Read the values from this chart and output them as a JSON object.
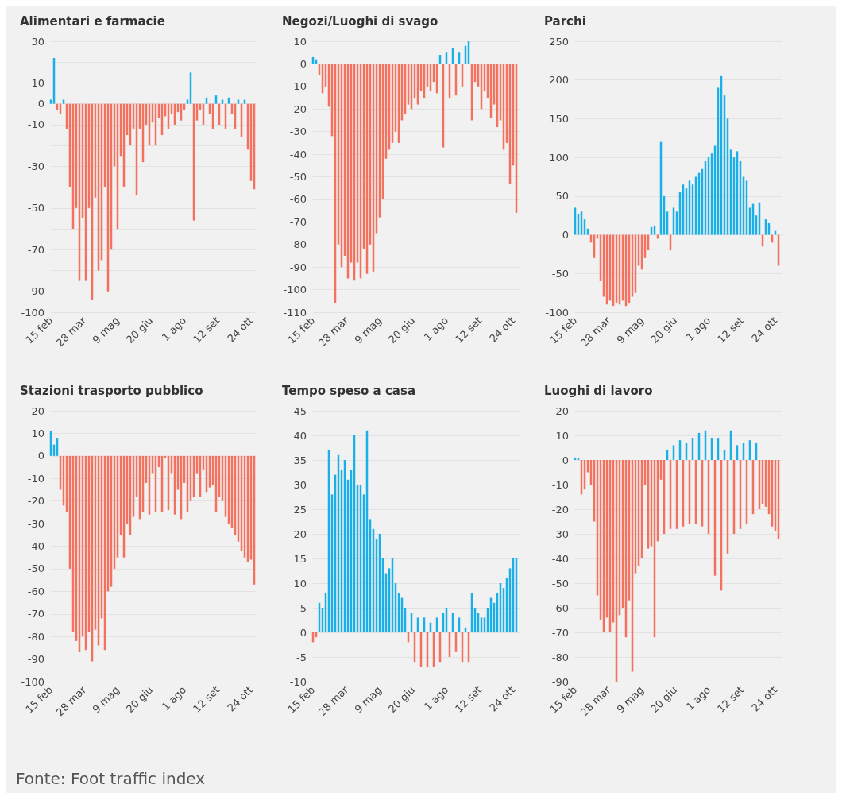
{
  "chart_data": [
    {
      "type": "bar",
      "title": "Alimentari e farmacie",
      "grid": "y",
      "ylim": [
        -100,
        30
      ],
      "yticks": [
        {
          "value": -100,
          "label": "-100"
        },
        {
          "value": -90,
          "label": "-90"
        },
        {
          "value": -80,
          "label": null
        },
        {
          "value": -70,
          "label": "-70"
        },
        {
          "value": -60,
          "label": null
        },
        {
          "value": -50,
          "label": "-50"
        },
        {
          "value": -40,
          "label": null
        },
        {
          "value": -30,
          "label": "-30"
        },
        {
          "value": -20,
          "label": null
        },
        {
          "value": -10,
          "label": "-10"
        },
        {
          "value": 0,
          "label": "0"
        },
        {
          "value": 10,
          "label": "10"
        },
        {
          "value": 20,
          "label": null
        },
        {
          "value": 30,
          "label": "30"
        }
      ],
      "xlim": [
        "--02-15",
        "--11-01"
      ],
      "xticks": [
        {
          "value": "--02-15",
          "label": "15 feb"
        },
        {
          "value": "--03-28",
          "label": "28 mar"
        },
        {
          "value": "--05-09",
          "label": "9 mag"
        },
        {
          "value": "--06-20",
          "label": "20 giu"
        },
        {
          "value": "--08-01",
          "label": "1 ago"
        },
        {
          "value": "--09-12",
          "label": "12 set"
        },
        {
          "value": "--10-24",
          "label": "24 ott"
        }
      ],
      "x": [
        "--02-15",
        "--02-19",
        "--02-23",
        "--02-27",
        "--03-02",
        "--03-06",
        "--03-10",
        "--03-14",
        "--03-18",
        "--03-22",
        "--03-26",
        "--03-30",
        "--04-03",
        "--04-07",
        "--04-11",
        "--04-15",
        "--04-19",
        "--04-23",
        "--04-27",
        "--05-01",
        "--05-05",
        "--05-09",
        "--05-13",
        "--05-17",
        "--05-21",
        "--05-25",
        "--05-29",
        "--06-02",
        "--06-06",
        "--06-10",
        "--06-14",
        "--06-18",
        "--06-22",
        "--06-26",
        "--06-30",
        "--07-04",
        "--07-08",
        "--07-12",
        "--07-16",
        "--07-20",
        "--07-24",
        "--07-28",
        "--08-01",
        "--08-05",
        "--08-09",
        "--08-13",
        "--08-17",
        "--08-21",
        "--08-25",
        "--08-29",
        "--09-02",
        "--09-06",
        "--09-10",
        "--09-14",
        "--09-18",
        "--09-22",
        "--09-26",
        "--09-30",
        "--10-04",
        "--10-08",
        "--10-12",
        "--10-16",
        "--10-20",
        "--10-24",
        "--10-28"
      ],
      "series": [
        {
          "color": "#1aafe6",
          "values": [
            2,
            22,
            null,
            null,
            2,
            null,
            null,
            null,
            null,
            null,
            null,
            null,
            null,
            null,
            null,
            null,
            null,
            null,
            null,
            null,
            null,
            null,
            null,
            null,
            null,
            null,
            null,
            null,
            null,
            null,
            null,
            null,
            null,
            null,
            null,
            null,
            null,
            null,
            null,
            null,
            null,
            null,
            null,
            2,
            15,
            null,
            null,
            null,
            null,
            3,
            null,
            null,
            4,
            null,
            2,
            null,
            3,
            null,
            null,
            2,
            null,
            2,
            null,
            null,
            null
          ]
        },
        {
          "color": "#f4715f",
          "values": [
            null,
            null,
            -3,
            -5,
            null,
            -12,
            -40,
            -60,
            -50,
            -85,
            -55,
            -85,
            -50,
            -94,
            -45,
            -80,
            -75,
            -40,
            -90,
            -70,
            -30,
            -60,
            -25,
            -40,
            -15,
            -20,
            -12,
            -44,
            -12,
            -28,
            -10,
            -20,
            -9,
            -20,
            -7,
            -15,
            -6,
            -12,
            -5,
            -10,
            -4,
            -8,
            -3,
            null,
            null,
            -56,
            -8,
            -3,
            -10,
            null,
            -5,
            -12,
            null,
            -10,
            null,
            -12,
            null,
            -5,
            -12,
            null,
            -16,
            null,
            -22,
            -37,
            -41
          ]
        }
      ]
    },
    {
      "type": "bar",
      "title": "Negozi/Luoghi di svago",
      "grid": "y",
      "ylim": [
        -110,
        10
      ],
      "yticks": [
        -110,
        -100,
        -90,
        -80,
        -70,
        -60,
        -50,
        -40,
        -30,
        -20,
        -10,
        0,
        10
      ],
      "xlim": [
        "--02-15",
        "--11-01"
      ],
      "xticks": [
        {
          "value": "--02-15",
          "label": "15 feb"
        },
        {
          "value": "--03-28",
          "label": "28 mar"
        },
        {
          "value": "--05-09",
          "label": "9 mag"
        },
        {
          "value": "--06-20",
          "label": "20 giu"
        },
        {
          "value": "--08-01",
          "label": "1 ago"
        },
        {
          "value": "--09-12",
          "label": "12 set"
        },
        {
          "value": "--10-24",
          "label": "24 ott"
        }
      ],
      "x": [
        "--02-15",
        "--02-19",
        "--02-23",
        "--02-27",
        "--03-02",
        "--03-06",
        "--03-10",
        "--03-14",
        "--03-18",
        "--03-22",
        "--03-26",
        "--03-30",
        "--04-03",
        "--04-07",
        "--04-11",
        "--04-15",
        "--04-19",
        "--04-23",
        "--04-27",
        "--05-01",
        "--05-05",
        "--05-09",
        "--05-13",
        "--05-17",
        "--05-21",
        "--05-25",
        "--05-29",
        "--06-02",
        "--06-06",
        "--06-10",
        "--06-14",
        "--06-18",
        "--06-22",
        "--06-26",
        "--06-30",
        "--07-04",
        "--07-08",
        "--07-12",
        "--07-16",
        "--07-20",
        "--07-24",
        "--07-28",
        "--08-01",
        "--08-05",
        "--08-09",
        "--08-13",
        "--08-17",
        "--08-21",
        "--08-25",
        "--08-29",
        "--09-02",
        "--09-06",
        "--09-10",
        "--09-14",
        "--09-18",
        "--09-22",
        "--09-26",
        "--09-30",
        "--10-04",
        "--10-08",
        "--10-12",
        "--10-16",
        "--10-20",
        "--10-24",
        "--10-28"
      ],
      "series": [
        {
          "color": "#1aafe6",
          "values": [
            3,
            2,
            null,
            null,
            null,
            null,
            null,
            null,
            null,
            null,
            null,
            null,
            null,
            null,
            null,
            null,
            null,
            null,
            null,
            null,
            null,
            null,
            null,
            null,
            null,
            null,
            null,
            null,
            null,
            null,
            null,
            null,
            null,
            null,
            null,
            null,
            null,
            null,
            null,
            null,
            4,
            null,
            5,
            null,
            7,
            null,
            5,
            null,
            8,
            10,
            null,
            null,
            null,
            null,
            null,
            null,
            null,
            null,
            null,
            null,
            null,
            null,
            null,
            null,
            null
          ]
        },
        {
          "color": "#f4715f",
          "values": [
            null,
            null,
            -5,
            -13,
            -10,
            -19,
            -32,
            -106,
            -80,
            -90,
            -85,
            -95,
            -88,
            -96,
            -88,
            -95,
            -82,
            -93,
            -80,
            -92,
            -75,
            -68,
            -60,
            -42,
            -38,
            -35,
            -30,
            -35,
            -25,
            -22,
            -18,
            -20,
            -15,
            -18,
            -12,
            -15,
            -10,
            -12,
            -8,
            -13,
            null,
            -37,
            null,
            -15,
            null,
            -14,
            null,
            -10,
            null,
            null,
            -25,
            -8,
            -10,
            -20,
            -12,
            -15,
            -24,
            -18,
            -28,
            -25,
            -38,
            -35,
            -53,
            -45,
            -66
          ]
        }
      ]
    },
    {
      "type": "bar",
      "title": "Parchi",
      "grid": "y",
      "ylim": [
        -100,
        250
      ],
      "yticks": [
        -100,
        -50,
        0,
        50,
        100,
        150,
        200,
        250
      ],
      "xlim": [
        "--02-15",
        "--11-01"
      ],
      "xticks": [
        {
          "value": "--02-15",
          "label": "15 feb"
        },
        {
          "value": "--03-28",
          "label": "28 mar"
        },
        {
          "value": "--05-09",
          "label": "9 mag"
        },
        {
          "value": "--06-20",
          "label": "20 giu"
        },
        {
          "value": "--08-01",
          "label": "1 ago"
        },
        {
          "value": "--09-12",
          "label": "12 set"
        },
        {
          "value": "--10-24",
          "label": "24 ott"
        }
      ],
      "x": [
        "--02-15",
        "--02-19",
        "--02-23",
        "--02-27",
        "--03-02",
        "--03-06",
        "--03-10",
        "--03-14",
        "--03-18",
        "--03-22",
        "--03-26",
        "--03-30",
        "--04-03",
        "--04-07",
        "--04-11",
        "--04-15",
        "--04-19",
        "--04-23",
        "--04-27",
        "--05-01",
        "--05-05",
        "--05-09",
        "--05-13",
        "--05-17",
        "--05-21",
        "--05-25",
        "--05-29",
        "--06-02",
        "--06-06",
        "--06-10",
        "--06-14",
        "--06-18",
        "--06-22",
        "--06-26",
        "--06-30",
        "--07-04",
        "--07-08",
        "--07-12",
        "--07-16",
        "--07-20",
        "--07-24",
        "--07-28",
        "--08-01",
        "--08-05",
        "--08-09",
        "--08-13",
        "--08-17",
        "--08-21",
        "--08-25",
        "--08-29",
        "--09-02",
        "--09-06",
        "--09-10",
        "--09-14",
        "--09-18",
        "--09-22",
        "--09-26",
        "--09-30",
        "--10-04",
        "--10-08",
        "--10-12",
        "--10-16",
        "--10-20",
        "--10-24",
        "--10-28"
      ],
      "series": [
        {
          "color": "#1aafe6",
          "values": [
            35,
            27,
            30,
            20,
            8,
            null,
            null,
            null,
            null,
            null,
            null,
            null,
            null,
            null,
            null,
            null,
            null,
            null,
            null,
            null,
            null,
            null,
            null,
            null,
            10,
            12,
            null,
            120,
            50,
            30,
            null,
            35,
            30,
            55,
            65,
            60,
            70,
            65,
            75,
            80,
            85,
            95,
            100,
            105,
            115,
            190,
            205,
            180,
            150,
            110,
            100,
            108,
            95,
            75,
            70,
            35,
            40,
            25,
            42,
            null,
            20,
            15,
            null,
            5,
            null
          ]
        },
        {
          "color": "#f4715f",
          "values": [
            null,
            null,
            null,
            null,
            null,
            -10,
            -30,
            -5,
            -60,
            -80,
            -90,
            -85,
            -92,
            -88,
            -90,
            -85,
            -92,
            -88,
            -80,
            -75,
            -40,
            -45,
            -30,
            -20,
            null,
            null,
            -5,
            null,
            null,
            null,
            -20,
            null,
            null,
            null,
            null,
            null,
            null,
            null,
            null,
            null,
            null,
            null,
            null,
            null,
            null,
            null,
            null,
            null,
            null,
            null,
            null,
            null,
            null,
            null,
            null,
            null,
            null,
            null,
            null,
            -15,
            null,
            null,
            -10,
            null,
            -40
          ]
        }
      ]
    },
    {
      "type": "bar",
      "title": "Stazioni trasporto pubblico",
      "grid": "y",
      "ylim": [
        -100,
        20
      ],
      "yticks": [
        -100,
        -90,
        -80,
        -70,
        -60,
        -50,
        -40,
        -30,
        -20,
        -10,
        0,
        10,
        20
      ],
      "xlim": [
        "--02-15",
        "--11-01"
      ],
      "xticks": [
        {
          "value": "--02-15",
          "label": "15 feb"
        },
        {
          "value": "--03-28",
          "label": "28 mar"
        },
        {
          "value": "--05-09",
          "label": "9 mag"
        },
        {
          "value": "--06-20",
          "label": "20 giu"
        },
        {
          "value": "--08-01",
          "label": "1 ago"
        },
        {
          "value": "--09-12",
          "label": "12 set"
        },
        {
          "value": "--10-24",
          "label": "24 ott"
        }
      ],
      "x": [
        "--02-15",
        "--02-19",
        "--02-23",
        "--02-27",
        "--03-02",
        "--03-06",
        "--03-10",
        "--03-14",
        "--03-18",
        "--03-22",
        "--03-26",
        "--03-30",
        "--04-03",
        "--04-07",
        "--04-11",
        "--04-15",
        "--04-19",
        "--04-23",
        "--04-27",
        "--05-01",
        "--05-05",
        "--05-09",
        "--05-13",
        "--05-17",
        "--05-21",
        "--05-25",
        "--05-29",
        "--06-02",
        "--06-06",
        "--06-10",
        "--06-14",
        "--06-18",
        "--06-22",
        "--06-26",
        "--06-30",
        "--07-04",
        "--07-08",
        "--07-12",
        "--07-16",
        "--07-20",
        "--07-24",
        "--07-28",
        "--08-01",
        "--08-05",
        "--08-09",
        "--08-13",
        "--08-17",
        "--08-21",
        "--08-25",
        "--08-29",
        "--09-02",
        "--09-06",
        "--09-10",
        "--09-14",
        "--09-18",
        "--09-22",
        "--09-26",
        "--09-30",
        "--10-04",
        "--10-08",
        "--10-12",
        "--10-16",
        "--10-20",
        "--10-24",
        "--10-28"
      ],
      "series": [
        {
          "color": "#1aafe6",
          "values": [
            11,
            5,
            8,
            null,
            null,
            null,
            null,
            null,
            null,
            null,
            null,
            null,
            null,
            null,
            null,
            null,
            null,
            null,
            null,
            null,
            null,
            null,
            null,
            null,
            null,
            null,
            null,
            null,
            null,
            null,
            null,
            null,
            null,
            null,
            null,
            null,
            null,
            null,
            null,
            null,
            null,
            null,
            null,
            null,
            null,
            null,
            null,
            null,
            null,
            null,
            null,
            null,
            null,
            null,
            null,
            null,
            null,
            null,
            null,
            null,
            null,
            null,
            null,
            null,
            null
          ]
        },
        {
          "color": "#f4715f",
          "values": [
            null,
            null,
            null,
            -15,
            -22,
            -25,
            -50,
            -78,
            -82,
            -87,
            -80,
            -86,
            -78,
            -91,
            -77,
            -84,
            -72,
            -86,
            -60,
            -58,
            -50,
            -45,
            -35,
            -45,
            -30,
            -35,
            -27,
            -18,
            -28,
            -25,
            -12,
            -26,
            -8,
            -25,
            -5,
            -25,
            -1,
            -24,
            -8,
            -26,
            -15,
            -28,
            -12,
            -25,
            -20,
            -18,
            -8,
            -18,
            -6,
            -16,
            -14,
            -13,
            -25,
            -18,
            -20,
            -27,
            -30,
            -32,
            -35,
            -38,
            -42,
            -45,
            -47,
            -46,
            -57
          ]
        }
      ]
    },
    {
      "type": "bar",
      "title": "Tempo speso a casa",
      "grid": "y",
      "ylim": [
        -10,
        45
      ],
      "yticks": [
        -10,
        -5,
        0,
        5,
        10,
        15,
        20,
        25,
        30,
        35,
        40,
        45
      ],
      "xlim": [
        "--02-15",
        "--11-01"
      ],
      "xticks": [
        {
          "value": "--02-15",
          "label": "15 feb"
        },
        {
          "value": "--03-28",
          "label": "28 mar"
        },
        {
          "value": "--05-09",
          "label": "9 mag"
        },
        {
          "value": "--06-20",
          "label": "20 giu"
        },
        {
          "value": "--08-01",
          "label": "1 ago"
        },
        {
          "value": "--09-12",
          "label": "12 set"
        },
        {
          "value": "--10-24",
          "label": "24 ott"
        }
      ],
      "x": [
        "--02-15",
        "--02-19",
        "--02-23",
        "--02-27",
        "--03-02",
        "--03-06",
        "--03-10",
        "--03-14",
        "--03-18",
        "--03-22",
        "--03-26",
        "--03-30",
        "--04-03",
        "--04-07",
        "--04-11",
        "--04-15",
        "--04-19",
        "--04-23",
        "--04-27",
        "--05-01",
        "--05-05",
        "--05-09",
        "--05-13",
        "--05-17",
        "--05-21",
        "--05-25",
        "--05-29",
        "--06-02",
        "--06-06",
        "--06-10",
        "--06-14",
        "--06-18",
        "--06-22",
        "--06-26",
        "--06-30",
        "--07-04",
        "--07-08",
        "--07-12",
        "--07-16",
        "--07-20",
        "--07-24",
        "--07-28",
        "--08-01",
        "--08-05",
        "--08-09",
        "--08-13",
        "--08-17",
        "--08-21",
        "--08-25",
        "--08-29",
        "--09-02",
        "--09-06",
        "--09-10",
        "--09-14",
        "--09-18",
        "--09-22",
        "--09-26",
        "--09-30",
        "--10-04",
        "--10-08",
        "--10-12",
        "--10-16",
        "--10-20",
        "--10-24",
        "--10-28"
      ],
      "series": [
        {
          "color": "#1aafe6",
          "values": [
            null,
            null,
            6,
            5,
            8,
            37,
            28,
            32,
            36,
            33,
            35,
            31,
            33,
            40,
            30,
            30,
            28,
            41,
            23,
            21,
            19,
            20,
            15,
            12,
            13,
            15,
            10,
            8,
            7,
            5,
            null,
            4,
            null,
            3,
            null,
            3,
            null,
            2,
            null,
            3,
            null,
            4,
            5,
            null,
            4,
            null,
            3,
            null,
            1,
            null,
            8,
            5,
            4,
            3,
            3,
            5,
            7,
            6,
            8,
            10,
            9,
            11,
            13,
            15,
            15
          ]
        },
        {
          "color": "#f4715f",
          "values": [
            -2,
            -1,
            null,
            null,
            null,
            null,
            null,
            null,
            null,
            null,
            null,
            null,
            null,
            null,
            null,
            null,
            null,
            null,
            null,
            null,
            null,
            null,
            null,
            null,
            null,
            null,
            null,
            null,
            null,
            null,
            -2,
            null,
            -6,
            null,
            -7,
            null,
            -7,
            null,
            -7,
            null,
            -6,
            null,
            null,
            -5,
            null,
            -4,
            null,
            -6,
            null,
            -6,
            null,
            null,
            null,
            null,
            null,
            null,
            null,
            null,
            null,
            null,
            null,
            null,
            null,
            null,
            null
          ]
        }
      ]
    },
    {
      "type": "bar",
      "title": "Luoghi di lavoro",
      "grid": "y",
      "ylim": [
        -90,
        20
      ],
      "yticks": [
        -90,
        -80,
        -70,
        -60,
        -50,
        -40,
        -30,
        -20,
        -10,
        0,
        10,
        20
      ],
      "xlim": [
        "--02-15",
        "--11-01"
      ],
      "xticks": [
        {
          "value": "--02-15",
          "label": "15 feb"
        },
        {
          "value": "--03-28",
          "label": "28 mar"
        },
        {
          "value": "--05-09",
          "label": "9 mag"
        },
        {
          "value": "--06-20",
          "label": "20 giu"
        },
        {
          "value": "--08-01",
          "label": "1 ago"
        },
        {
          "value": "--09-12",
          "label": "12 set"
        },
        {
          "value": "--10-24",
          "label": "24 ott"
        }
      ],
      "x": [
        "--02-15",
        "--02-19",
        "--02-23",
        "--02-27",
        "--03-02",
        "--03-06",
        "--03-10",
        "--03-14",
        "--03-18",
        "--03-22",
        "--03-26",
        "--03-30",
        "--04-03",
        "--04-07",
        "--04-11",
        "--04-15",
        "--04-19",
        "--04-23",
        "--04-27",
        "--05-01",
        "--05-05",
        "--05-09",
        "--05-13",
        "--05-17",
        "--05-21",
        "--05-25",
        "--05-29",
        "--06-02",
        "--06-06",
        "--06-10",
        "--06-14",
        "--06-18",
        "--06-22",
        "--06-26",
        "--06-30",
        "--07-04",
        "--07-08",
        "--07-12",
        "--07-16",
        "--07-20",
        "--07-24",
        "--07-28",
        "--08-01",
        "--08-05",
        "--08-09",
        "--08-13",
        "--08-17",
        "--08-21",
        "--08-25",
        "--08-29",
        "--09-02",
        "--09-06",
        "--09-10",
        "--09-14",
        "--09-18",
        "--09-22",
        "--09-26",
        "--09-30",
        "--10-04",
        "--10-08",
        "--10-12",
        "--10-16",
        "--10-20",
        "--10-24",
        "--10-28"
      ],
      "series": [
        {
          "color": "#1aafe6",
          "values": [
            1,
            1,
            null,
            null,
            null,
            null,
            null,
            null,
            null,
            null,
            null,
            null,
            null,
            null,
            null,
            null,
            null,
            null,
            null,
            null,
            null,
            null,
            null,
            null,
            null,
            null,
            null,
            null,
            null,
            4,
            null,
            6,
            null,
            8,
            null,
            7,
            null,
            9,
            null,
            11,
            null,
            12,
            null,
            9,
            null,
            9,
            null,
            4,
            null,
            12,
            null,
            6,
            null,
            7,
            null,
            8,
            null,
            7,
            null,
            null,
            null,
            null,
            null,
            null,
            null
          ]
        },
        {
          "color": "#f4715f",
          "values": [
            null,
            null,
            -14,
            -12,
            -5,
            -10,
            -25,
            -55,
            -65,
            -70,
            -64,
            -70,
            -66,
            -90,
            -63,
            -60,
            -72,
            -57,
            -86,
            -46,
            -43,
            -40,
            -10,
            -36,
            -35,
            -72,
            -33,
            -8,
            -30,
            null,
            -28,
            null,
            -28,
            null,
            -27,
            null,
            -26,
            null,
            -26,
            null,
            -27,
            null,
            -30,
            null,
            -47,
            null,
            -53,
            null,
            -38,
            null,
            -30,
            null,
            -28,
            null,
            -26,
            null,
            -22,
            null,
            -20,
            -18,
            -19,
            -22,
            -27,
            -29,
            -32
          ]
        }
      ],
      "annotations": [
        "Fonte: Foot traffic index"
      ]
    }
  ]
}
